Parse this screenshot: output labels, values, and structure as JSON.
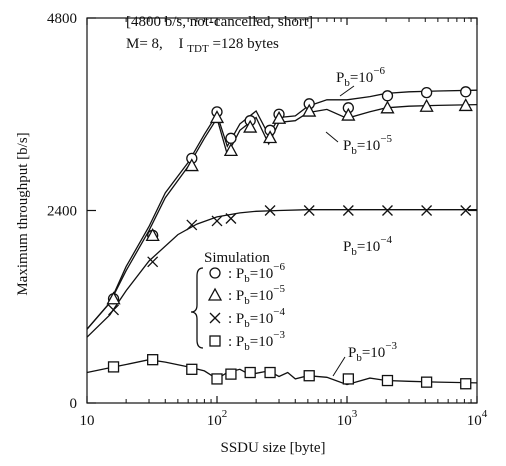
{
  "chart_data": {
    "type": "line",
    "xlabel": "SSDU size [byte]",
    "ylabel": "Maximum throughput [b/s]",
    "x_scale": "log",
    "xlim": [
      10,
      10000
    ],
    "ylim": [
      0,
      4800
    ],
    "x_ticks": [
      {
        "value": 10,
        "base": "10",
        "exp": ""
      },
      {
        "value": 100,
        "base": "10",
        "exp": "2"
      },
      {
        "value": 1000,
        "base": "10",
        "exp": "3"
      },
      {
        "value": 10000,
        "base": "10",
        "exp": "4"
      }
    ],
    "y_ticks": [
      {
        "value": 0,
        "label": "0"
      },
      {
        "value": 2400,
        "label": "2400"
      },
      {
        "value": 4800,
        "label": "4800"
      }
    ],
    "grid": false,
    "conditions_line1": "[4800 b/s, not-cancelled, short]",
    "conditions_line2_a": "M= 8,",
    "conditions_line2_b": "I",
    "conditions_line2_sub": "TDT",
    "conditions_line2_c": "=128 bytes",
    "legend_title": "Simulation",
    "legend_prefix": ": P",
    "legend_sub": "b",
    "legend_eq": "=10",
    "series": [
      {
        "label_sub": "b",
        "label_exp": "−6",
        "legend_exp": "−6",
        "marker": "circle",
        "curve": [
          [
            10,
            920
          ],
          [
            15,
            1250
          ],
          [
            20,
            1700
          ],
          [
            30,
            2200
          ],
          [
            40,
            2620
          ],
          [
            60,
            3000
          ],
          [
            80,
            3350
          ],
          [
            100,
            3600
          ],
          [
            120,
            3200
          ],
          [
            150,
            3480
          ],
          [
            200,
            3640
          ],
          [
            250,
            3340
          ],
          [
            300,
            3560
          ],
          [
            400,
            3580
          ],
          [
            500,
            3700
          ],
          [
            700,
            3780
          ],
          [
            1000,
            3780
          ],
          [
            1500,
            3820
          ],
          [
            2000,
            3860
          ],
          [
            3000,
            3880
          ],
          [
            5000,
            3890
          ],
          [
            10000,
            3900
          ]
        ],
        "markers": [
          [
            16,
            1300
          ],
          [
            32,
            2090
          ],
          [
            64,
            3050
          ],
          [
            100,
            3630
          ],
          [
            128,
            3300
          ],
          [
            180,
            3520
          ],
          [
            256,
            3400
          ],
          [
            300,
            3600
          ],
          [
            512,
            3730
          ],
          [
            1024,
            3680
          ],
          [
            2048,
            3830
          ],
          [
            4096,
            3870
          ],
          [
            8192,
            3880
          ]
        ]
      },
      {
        "label_sub": "b",
        "label_exp": "−5",
        "legend_exp": "−5",
        "marker": "triangle",
        "curve": [
          [
            10,
            920
          ],
          [
            15,
            1250
          ],
          [
            20,
            1650
          ],
          [
            30,
            2150
          ],
          [
            40,
            2560
          ],
          [
            60,
            2950
          ],
          [
            80,
            3300
          ],
          [
            100,
            3550
          ],
          [
            120,
            3100
          ],
          [
            150,
            3400
          ],
          [
            200,
            3560
          ],
          [
            250,
            3230
          ],
          [
            300,
            3500
          ],
          [
            400,
            3520
          ],
          [
            500,
            3620
          ],
          [
            700,
            3660
          ],
          [
            1000,
            3550
          ],
          [
            1500,
            3630
          ],
          [
            2000,
            3680
          ],
          [
            3000,
            3700
          ],
          [
            5000,
            3710
          ],
          [
            10000,
            3720
          ]
        ],
        "markers": [
          [
            16,
            1300
          ],
          [
            32,
            2090
          ],
          [
            64,
            2960
          ],
          [
            100,
            3560
          ],
          [
            128,
            3150
          ],
          [
            180,
            3440
          ],
          [
            256,
            3310
          ],
          [
            300,
            3550
          ],
          [
            512,
            3640
          ],
          [
            1024,
            3590
          ],
          [
            2048,
            3680
          ],
          [
            4096,
            3700
          ],
          [
            8192,
            3710
          ]
        ]
      },
      {
        "label_sub": "b",
        "label_exp": "−4",
        "legend_exp": "−4",
        "marker": "cross",
        "curve": [
          [
            10,
            820
          ],
          [
            15,
            1100
          ],
          [
            20,
            1400
          ],
          [
            30,
            1770
          ],
          [
            50,
            2100
          ],
          [
            70,
            2230
          ],
          [
            100,
            2320
          ],
          [
            150,
            2370
          ],
          [
            200,
            2390
          ],
          [
            300,
            2400
          ],
          [
            500,
            2410
          ],
          [
            1000,
            2410
          ],
          [
            3000,
            2410
          ],
          [
            10000,
            2410
          ]
        ],
        "markers": [
          [
            16,
            1160
          ],
          [
            32,
            1760
          ],
          [
            64,
            2220
          ],
          [
            100,
            2270
          ],
          [
            128,
            2300
          ],
          [
            256,
            2400
          ],
          [
            512,
            2400
          ],
          [
            1024,
            2400
          ],
          [
            2048,
            2400
          ],
          [
            4096,
            2400
          ],
          [
            8192,
            2400
          ]
        ]
      },
      {
        "label_sub": "b",
        "label_exp": "−3",
        "legend_exp": "−3",
        "marker": "square",
        "curve": [
          [
            10,
            380
          ],
          [
            15,
            440
          ],
          [
            20,
            480
          ],
          [
            30,
            540
          ],
          [
            40,
            510
          ],
          [
            60,
            450
          ],
          [
            80,
            400
          ],
          [
            100,
            300
          ],
          [
            120,
            380
          ],
          [
            150,
            420
          ],
          [
            180,
            350
          ],
          [
            200,
            370
          ],
          [
            250,
            400
          ],
          [
            300,
            330
          ],
          [
            350,
            380
          ],
          [
            400,
            300
          ],
          [
            500,
            340
          ],
          [
            700,
            320
          ],
          [
            1000,
            230
          ],
          [
            1500,
            310
          ],
          [
            2000,
            280
          ],
          [
            3000,
            270
          ],
          [
            5000,
            260
          ],
          [
            10000,
            250
          ]
        ],
        "markers": [
          [
            16,
            450
          ],
          [
            32,
            540
          ],
          [
            64,
            420
          ],
          [
            100,
            300
          ],
          [
            128,
            360
          ],
          [
            180,
            380
          ],
          [
            256,
            380
          ],
          [
            512,
            340
          ],
          [
            1024,
            300
          ],
          [
            2048,
            280
          ],
          [
            4096,
            260
          ],
          [
            8192,
            240
          ]
        ]
      }
    ]
  }
}
